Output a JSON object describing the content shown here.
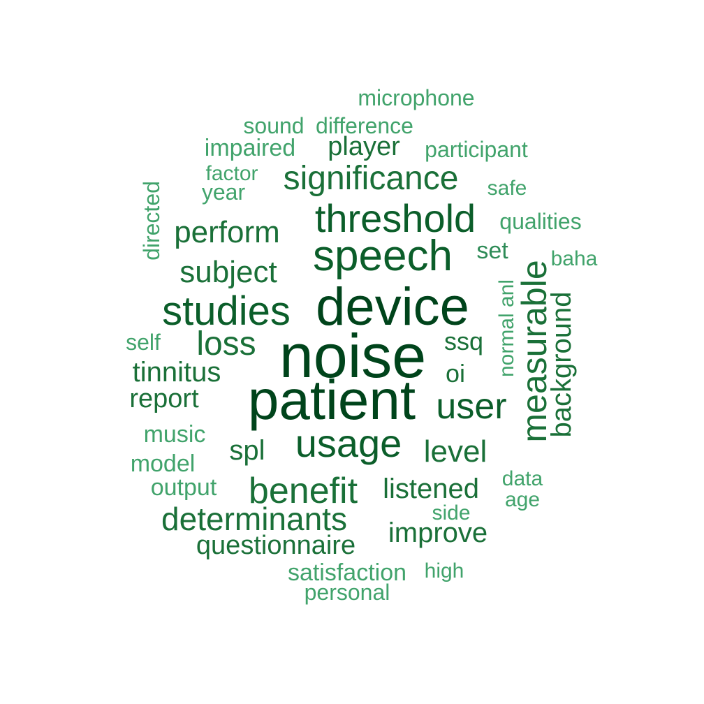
{
  "palette": {
    "darkest": "#00441b",
    "dark": "#0b5e2a",
    "medium_dark": "#1a7038",
    "medium": "#2e8b57",
    "light": "#41a36b"
  },
  "words": [
    {
      "text": "noise",
      "tone": "darkest"
    },
    {
      "text": "patient",
      "tone": "darkest"
    },
    {
      "text": "device",
      "tone": "darkest"
    },
    {
      "text": "speech",
      "tone": "dark"
    },
    {
      "text": "threshold",
      "tone": "dark"
    },
    {
      "text": "studies",
      "tone": "dark"
    },
    {
      "text": "usage",
      "tone": "dark"
    },
    {
      "text": "user",
      "tone": "dark"
    },
    {
      "text": "measurable",
      "tone": "medium_dark"
    },
    {
      "text": "benefit",
      "tone": "medium_dark"
    },
    {
      "text": "significance",
      "tone": "medium_dark"
    },
    {
      "text": "loss",
      "tone": "medium_dark"
    },
    {
      "text": "subject",
      "tone": "medium_dark"
    },
    {
      "text": "perform",
      "tone": "medium_dark"
    },
    {
      "text": "determinants",
      "tone": "medium_dark"
    },
    {
      "text": "level",
      "tone": "medium_dark"
    },
    {
      "text": "background",
      "tone": "medium_dark"
    },
    {
      "text": "listened",
      "tone": "medium_dark"
    },
    {
      "text": "improve",
      "tone": "medium_dark"
    },
    {
      "text": "questionnaire",
      "tone": "medium_dark"
    },
    {
      "text": "tinnitus",
      "tone": "medium_dark"
    },
    {
      "text": "player",
      "tone": "medium_dark"
    },
    {
      "text": "spl",
      "tone": "medium_dark"
    },
    {
      "text": "report",
      "tone": "medium_dark"
    },
    {
      "text": "ssq",
      "tone": "medium_dark"
    },
    {
      "text": "oi",
      "tone": "medium_dark"
    },
    {
      "text": "set",
      "tone": "medium"
    },
    {
      "text": "impaired",
      "tone": "light"
    },
    {
      "text": "participant",
      "tone": "light"
    },
    {
      "text": "qualities",
      "tone": "light"
    },
    {
      "text": "music",
      "tone": "light"
    },
    {
      "text": "model",
      "tone": "light"
    },
    {
      "text": "output",
      "tone": "light"
    },
    {
      "text": "satisfaction",
      "tone": "light"
    },
    {
      "text": "microphone",
      "tone": "light"
    },
    {
      "text": "difference",
      "tone": "light"
    },
    {
      "text": "sound",
      "tone": "light"
    },
    {
      "text": "year",
      "tone": "light"
    },
    {
      "text": "factor",
      "tone": "light"
    },
    {
      "text": "directed",
      "tone": "light"
    },
    {
      "text": "normal anl",
      "tone": "light"
    },
    {
      "text": "self",
      "tone": "light"
    },
    {
      "text": "safe",
      "tone": "light"
    },
    {
      "text": "baha",
      "tone": "light"
    },
    {
      "text": "data",
      "tone": "light"
    },
    {
      "text": "age",
      "tone": "light"
    },
    {
      "text": "side",
      "tone": "light"
    },
    {
      "text": "high",
      "tone": "light"
    },
    {
      "text": "personal",
      "tone": "light"
    }
  ]
}
